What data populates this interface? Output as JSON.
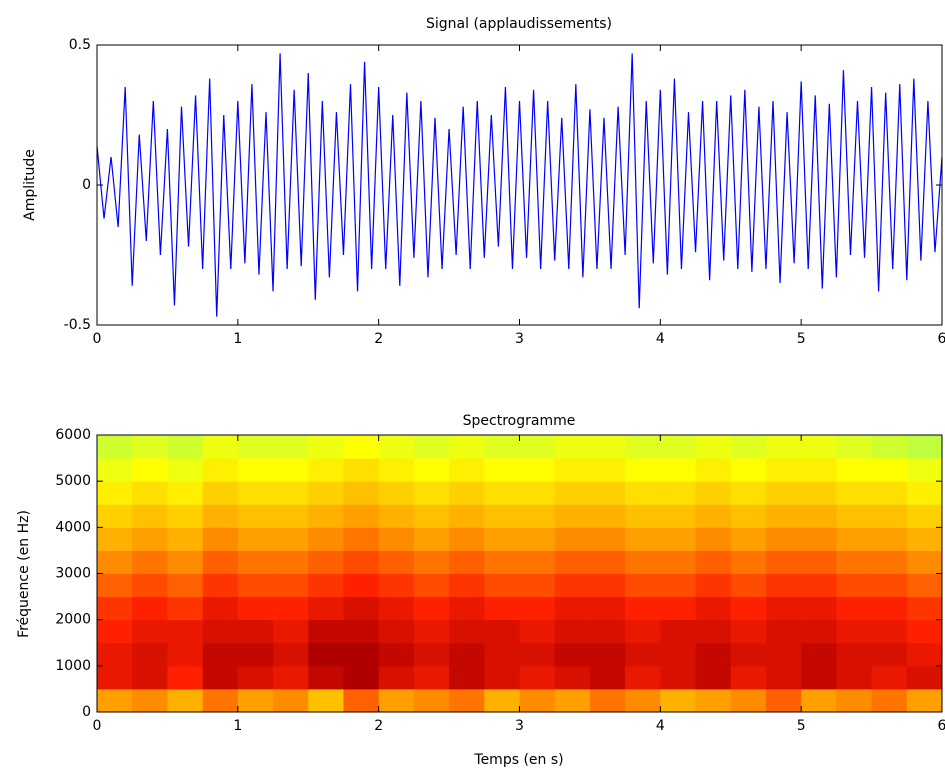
{
  "chart_data": [
    {
      "type": "line",
      "title": "Signal (applaudissements)",
      "ylabel": "Amplitude",
      "color": "#0000ff",
      "x": [
        0,
        0.05,
        0.1,
        0.15,
        0.2,
        0.25,
        0.3,
        0.35,
        0.4,
        0.45,
        0.5,
        0.55,
        0.6,
        0.65,
        0.7,
        0.75,
        0.8,
        0.85,
        0.9,
        0.95,
        1,
        1.05,
        1.1,
        1.15,
        1.2,
        1.25,
        1.3,
        1.35,
        1.4,
        1.45,
        1.5,
        1.55,
        1.6,
        1.65,
        1.7,
        1.75,
        1.8,
        1.85,
        1.9,
        1.95,
        2,
        2.05,
        2.1,
        2.15,
        2.2,
        2.25,
        2.3,
        2.35,
        2.4,
        2.45,
        2.5,
        2.55,
        2.6,
        2.65,
        2.7,
        2.75,
        2.8,
        2.85,
        2.9,
        2.95,
        3,
        3.05,
        3.1,
        3.15,
        3.2,
        3.25,
        3.3,
        3.35,
        3.4,
        3.45,
        3.5,
        3.55,
        3.6,
        3.65,
        3.7,
        3.75,
        3.8,
        3.85,
        3.9,
        3.95,
        4,
        4.05,
        4.1,
        4.15,
        4.2,
        4.25,
        4.3,
        4.35,
        4.4,
        4.45,
        4.5,
        4.55,
        4.6,
        4.65,
        4.7,
        4.75,
        4.8,
        4.85,
        4.9,
        4.95,
        5,
        5.05,
        5.1,
        5.15,
        5.2,
        5.25,
        5.3,
        5.35,
        5.4,
        5.45,
        5.5,
        5.55,
        5.6,
        5.65,
        5.7,
        5.75,
        5.8,
        5.85,
        5.9,
        5.95,
        6
      ],
      "values": [
        0.14,
        -0.12,
        0.1,
        -0.15,
        0.35,
        -0.36,
        0.18,
        -0.2,
        0.3,
        -0.25,
        0.2,
        -0.43,
        0.28,
        -0.22,
        0.32,
        -0.3,
        0.38,
        -0.47,
        0.25,
        -0.3,
        0.3,
        -0.28,
        0.36,
        -0.32,
        0.26,
        -0.38,
        0.47,
        -0.3,
        0.34,
        -0.29,
        0.4,
        -0.41,
        0.3,
        -0.33,
        0.26,
        -0.25,
        0.36,
        -0.38,
        0.44,
        -0.3,
        0.35,
        -0.3,
        0.25,
        -0.36,
        0.33,
        -0.26,
        0.3,
        -0.33,
        0.24,
        -0.3,
        0.2,
        -0.25,
        0.28,
        -0.3,
        0.3,
        -0.26,
        0.25,
        -0.22,
        0.35,
        -0.3,
        0.3,
        -0.26,
        0.34,
        -0.3,
        0.3,
        -0.27,
        0.24,
        -0.3,
        0.36,
        -0.33,
        0.27,
        -0.3,
        0.24,
        -0.3,
        0.28,
        -0.25,
        0.47,
        -0.44,
        0.3,
        -0.28,
        0.34,
        -0.32,
        0.38,
        -0.3,
        0.26,
        -0.24,
        0.3,
        -0.34,
        0.3,
        -0.27,
        0.32,
        -0.3,
        0.34,
        -0.31,
        0.28,
        -0.3,
        0.3,
        -0.35,
        0.26,
        -0.28,
        0.37,
        -0.3,
        0.32,
        -0.37,
        0.29,
        -0.33,
        0.41,
        -0.25,
        0.3,
        -0.26,
        0.35,
        -0.38,
        0.33,
        -0.3,
        0.36,
        -0.34,
        0.38,
        -0.27,
        0.3,
        -0.24,
        0.1
      ],
      "xlim": [
        0,
        6
      ],
      "xticks": [
        0,
        1,
        2,
        3,
        4,
        5,
        6
      ],
      "ylim": [
        -0.5,
        0.5
      ],
      "yticks": [
        -0.5,
        0,
        0.5
      ]
    },
    {
      "type": "heatmap",
      "title": "Spectrogramme",
      "xlabel": "Temps (en s)",
      "ylabel": "Fréquence (en Hz)",
      "xlim": [
        0,
        6
      ],
      "xticks": [
        0,
        1,
        2,
        3,
        4,
        5,
        6
      ],
      "ylim": [
        0,
        6000
      ],
      "yticks": [
        0,
        1000,
        2000,
        3000,
        4000,
        5000,
        6000
      ],
      "z": [
        [
          -36,
          -35,
          -37,
          -34,
          -36,
          -35,
          -38,
          -33,
          -36,
          -35,
          -34,
          -37,
          -35,
          -36,
          -34,
          -35,
          -37,
          -36,
          -35,
          -33,
          -36,
          -35,
          -34,
          -36
        ],
        [
          -29,
          -28,
          -30,
          -27,
          -28,
          -29,
          -27,
          -26,
          -28,
          -29,
          -27,
          -28,
          -29,
          -28,
          -27,
          -29,
          -28,
          -27,
          -29,
          -28,
          -27,
          -28,
          -29,
          -28
        ],
        [
          -29,
          -28,
          -29,
          -27,
          -27,
          -28,
          -26,
          -26,
          -27,
          -28,
          -27,
          -28,
          -28,
          -27,
          -27,
          -28,
          -28,
          -27,
          -28,
          -28,
          -27,
          -28,
          -28,
          -29
        ],
        [
          -30,
          -29,
          -29,
          -28,
          -28,
          -29,
          -27,
          -27,
          -28,
          -29,
          -28,
          -28,
          -29,
          -28,
          -28,
          -29,
          -28,
          -28,
          -29,
          -28,
          -28,
          -29,
          -29,
          -30
        ],
        [
          -31,
          -30,
          -31,
          -29,
          -30,
          -30,
          -29,
          -28,
          -29,
          -30,
          -29,
          -30,
          -30,
          -29,
          -29,
          -30,
          -30,
          -29,
          -30,
          -29,
          -29,
          -30,
          -30,
          -31
        ],
        [
          -33,
          -32,
          -33,
          -31,
          -32,
          -32,
          -31,
          -30,
          -31,
          -32,
          -31,
          -32,
          -32,
          -31,
          -31,
          -32,
          -32,
          -31,
          -32,
          -31,
          -31,
          -32,
          -32,
          -33
        ],
        [
          -35,
          -34,
          -35,
          -33,
          -34,
          -34,
          -33,
          -32,
          -33,
          -34,
          -33,
          -34,
          -34,
          -33,
          -33,
          -34,
          -34,
          -33,
          -34,
          -33,
          -33,
          -34,
          -34,
          -35
        ],
        [
          -37,
          -36,
          -37,
          -35,
          -36,
          -36,
          -35,
          -34,
          -35,
          -36,
          -35,
          -36,
          -36,
          -35,
          -35,
          -36,
          -36,
          -35,
          -36,
          -35,
          -35,
          -36,
          -36,
          -37
        ],
        [
          -39,
          -38,
          -39,
          -37,
          -38,
          -38,
          -37,
          -36,
          -37,
          -38,
          -37,
          -38,
          -38,
          -37,
          -37,
          -38,
          -38,
          -37,
          -38,
          -37,
          -37,
          -38,
          -38,
          -39
        ],
        [
          -41,
          -40,
          -41,
          -39,
          -40,
          -40,
          -39,
          -38,
          -39,
          -40,
          -39,
          -40,
          -40,
          -39,
          -39,
          -40,
          -40,
          -39,
          -40,
          -39,
          -39,
          -40,
          -40,
          -41
        ],
        [
          -43,
          -42,
          -43,
          -41,
          -42,
          -42,
          -41,
          -40,
          -41,
          -42,
          -41,
          -42,
          -42,
          -41,
          -41,
          -42,
          -42,
          -41,
          -42,
          -41,
          -41,
          -42,
          -42,
          -43
        ],
        [
          -45,
          -44,
          -45,
          -43,
          -44,
          -44,
          -43,
          -42,
          -43,
          -44,
          -43,
          -44,
          -44,
          -43,
          -43,
          -44,
          -44,
          -43,
          -44,
          -43,
          -43,
          -44,
          -45,
          -46
        ]
      ]
    }
  ]
}
